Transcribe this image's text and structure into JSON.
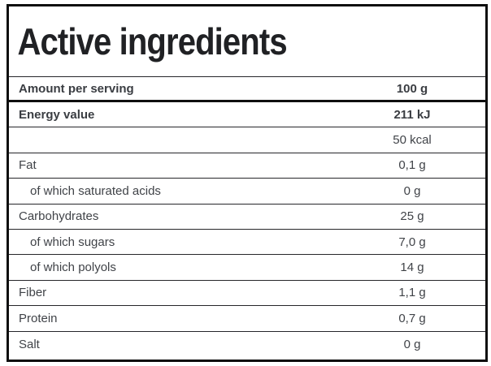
{
  "title": "Active ingredients",
  "serving_header": {
    "label": "Amount per serving",
    "value": "100 g"
  },
  "rows": [
    {
      "label": "Energy value",
      "value": "211 kJ",
      "bold": true,
      "indent": false
    },
    {
      "label": "",
      "value": "50 kcal",
      "bold": false,
      "indent": false
    },
    {
      "label": "Fat",
      "value": "0,1 g",
      "bold": false,
      "indent": false
    },
    {
      "label": "of which saturated acids",
      "value": "0 g",
      "bold": false,
      "indent": true
    },
    {
      "label": "Carbohydrates",
      "value": "25 g",
      "bold": false,
      "indent": false
    },
    {
      "label": "of which sugars",
      "value": "7,0 g",
      "bold": false,
      "indent": true
    },
    {
      "label": "of which polyols",
      "value": "14 g",
      "bold": false,
      "indent": true
    },
    {
      "label": "Fiber",
      "value": "1,1 g",
      "bold": false,
      "indent": false
    },
    {
      "label": "Protein",
      "value": "0,7 g",
      "bold": false,
      "indent": false
    },
    {
      "label": "Salt",
      "value": "0 g",
      "bold": false,
      "indent": false
    }
  ],
  "colors": {
    "border": "#0f0f0f",
    "divider": "#26262a",
    "text": "#404348",
    "title": "#202124",
    "background": "#ffffff"
  }
}
